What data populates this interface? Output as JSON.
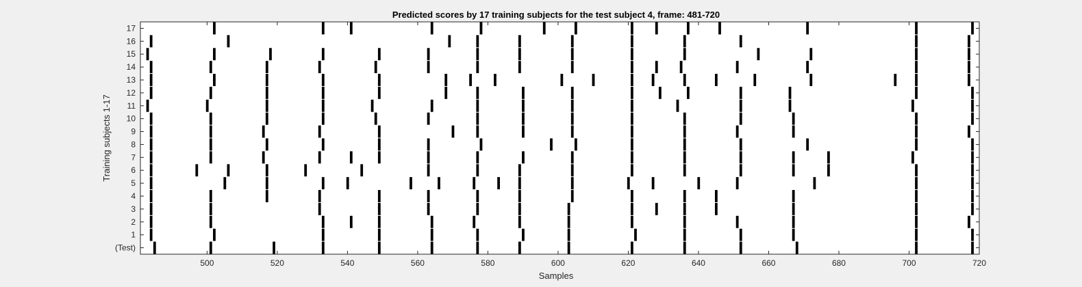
{
  "chart_data": {
    "type": "heatmap",
    "title": "Predicted scores by 17 training subjects for the test subject 4, frame: 481-720",
    "xlabel": "Samples",
    "ylabel": "Training subjects 1-17",
    "xlim": [
      481,
      720
    ],
    "x_ticks": [
      500,
      520,
      540,
      560,
      580,
      600,
      620,
      640,
      660,
      680,
      700,
      720
    ],
    "row_labels": [
      "(Test)",
      "1",
      "2",
      "3",
      "4",
      "5",
      "6",
      "7",
      "8",
      "9",
      "10",
      "11",
      "12",
      "13",
      "14",
      "15",
      "16",
      "17"
    ],
    "grid": false,
    "colors": {
      "mark": "#000000",
      "background": "#ffffff"
    },
    "rows": [
      {
        "label": "(Test)",
        "onsets": [
          485,
          501,
          519,
          533,
          549,
          564,
          577,
          589,
          603,
          621,
          636,
          652,
          668,
          702,
          718
        ]
      },
      {
        "label": "1",
        "onsets": [
          484,
          502,
          533,
          549,
          564,
          577,
          590,
          603,
          622,
          636,
          652,
          667,
          702,
          718
        ]
      },
      {
        "label": "2",
        "onsets": [
          484,
          501,
          533,
          541,
          549,
          564,
          576,
          589,
          603,
          621,
          636,
          651,
          667,
          702,
          717
        ]
      },
      {
        "label": "3",
        "onsets": [
          484,
          501,
          532,
          549,
          563,
          577,
          589,
          603,
          621,
          628,
          636,
          645,
          667,
          702,
          718
        ]
      },
      {
        "label": "4",
        "onsets": [
          484,
          501,
          517,
          532,
          549,
          563,
          577,
          589,
          604,
          621,
          636,
          645,
          667,
          702,
          718
        ]
      },
      {
        "label": "5",
        "onsets": [
          484,
          505,
          517,
          533,
          540,
          558,
          566,
          576,
          583,
          589,
          604,
          620,
          627,
          640,
          651,
          673,
          702,
          718
        ]
      },
      {
        "label": "6",
        "onsets": [
          484,
          497,
          506,
          517,
          528,
          544,
          563,
          577,
          589,
          604,
          621,
          636,
          652,
          667,
          677,
          702,
          718
        ]
      },
      {
        "label": "7",
        "onsets": [
          484,
          501,
          516,
          532,
          541,
          549,
          563,
          577,
          590,
          604,
          621,
          636,
          652,
          667,
          677,
          701,
          718
        ]
      },
      {
        "label": "8",
        "onsets": [
          484,
          501,
          517,
          533,
          549,
          563,
          578,
          598,
          605,
          621,
          636,
          652,
          671,
          702,
          718
        ]
      },
      {
        "label": "9",
        "onsets": [
          484,
          501,
          516,
          532,
          549,
          570,
          577,
          590,
          604,
          621,
          636,
          651,
          667,
          702,
          717
        ]
      },
      {
        "label": "10",
        "onsets": [
          484,
          501,
          517,
          533,
          548,
          563,
          577,
          590,
          604,
          621,
          636,
          652,
          667,
          702,
          718
        ]
      },
      {
        "label": "11",
        "onsets": [
          483,
          500,
          517,
          533,
          547,
          564,
          577,
          590,
          604,
          621,
          634,
          652,
          666,
          701,
          718
        ]
      },
      {
        "label": "12",
        "onsets": [
          484,
          501,
          517,
          533,
          549,
          568,
          577,
          590,
          604,
          621,
          629,
          637,
          652,
          666,
          702,
          718
        ]
      },
      {
        "label": "13",
        "onsets": [
          484,
          502,
          517,
          533,
          549,
          568,
          575,
          582,
          601,
          610,
          621,
          627,
          636,
          645,
          656,
          672,
          696,
          702,
          717
        ]
      },
      {
        "label": "14",
        "onsets": [
          484,
          501,
          517,
          532,
          548,
          563,
          577,
          589,
          604,
          621,
          628,
          635,
          651,
          671,
          702,
          717
        ]
      },
      {
        "label": "15",
        "onsets": [
          483,
          502,
          518,
          533,
          549,
          563,
          577,
          589,
          604,
          621,
          636,
          657,
          672,
          702,
          717
        ]
      },
      {
        "label": "16",
        "onsets": [
          484,
          506,
          569,
          577,
          589,
          604,
          621,
          636,
          652,
          702,
          717
        ]
      },
      {
        "label": "17",
        "onsets": [
          502,
          533,
          541,
          564,
          578,
          596,
          605,
          621,
          628,
          637,
          646,
          671,
          702,
          718
        ]
      }
    ]
  }
}
